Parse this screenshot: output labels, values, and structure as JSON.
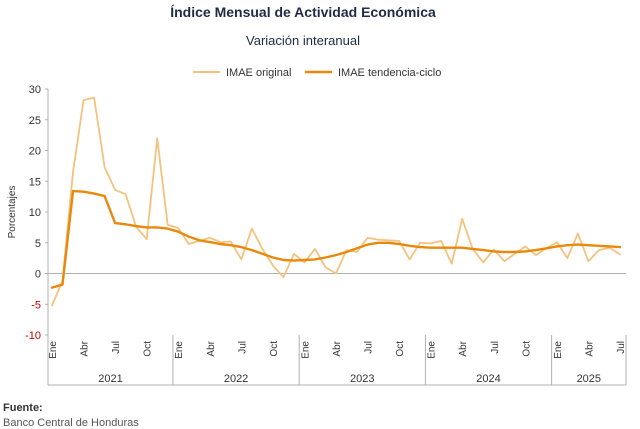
{
  "chart_data": {
    "type": "line",
    "title": "Índice Mensual de Actividad Económica",
    "subtitle": "Variación interanual",
    "ylabel": "Porcentajes",
    "xlabel": "",
    "ylim": [
      -10,
      30
    ],
    "yticks": [
      -10,
      -5,
      0,
      5,
      10,
      15,
      20,
      25,
      30
    ],
    "grid": false,
    "legend_position": "top",
    "month_tick_labels": [
      "Ene",
      "Abr",
      "Jul",
      "Oct"
    ],
    "years": [
      "2021",
      "2022",
      "2023",
      "2024",
      "2025"
    ],
    "series": [
      {
        "name": "IMAE original",
        "color": "#f5c27d",
        "values": [
          -5.2,
          -1.2,
          16.5,
          28.2,
          28.6,
          17.3,
          13.6,
          12.9,
          7.6,
          5.6,
          22.0,
          7.9,
          7.4,
          4.8,
          5.3,
          5.8,
          5.1,
          5.2,
          2.3,
          7.3,
          4.0,
          1.3,
          -0.6,
          3.2,
          1.8,
          4.0,
          1.0,
          0.0,
          3.8,
          3.5,
          5.8,
          5.5,
          5.4,
          5.3,
          2.3,
          5.0,
          4.9,
          5.3,
          1.6,
          8.9,
          4.0,
          1.8,
          3.9,
          2.0,
          3.2,
          4.4,
          3.0,
          4.1,
          5.1,
          2.5,
          6.5,
          2.0,
          3.8,
          4.2,
          3.1
        ]
      },
      {
        "name": "IMAE tendencia-ciclo",
        "color": "#e8890c",
        "values": [
          -2.3,
          -1.8,
          13.4,
          13.3,
          13.0,
          12.6,
          8.2,
          8.0,
          7.7,
          7.5,
          7.5,
          7.3,
          6.8,
          6.0,
          5.4,
          5.1,
          4.8,
          4.6,
          4.3,
          3.8,
          3.2,
          2.6,
          2.2,
          2.1,
          2.2,
          2.3,
          2.6,
          3.0,
          3.5,
          4.1,
          4.7,
          5.0,
          5.0,
          4.8,
          4.5,
          4.3,
          4.2,
          4.2,
          4.2,
          4.2,
          4.0,
          3.8,
          3.6,
          3.5,
          3.5,
          3.6,
          3.8,
          4.1,
          4.4,
          4.6,
          4.7,
          4.6,
          4.5,
          4.4,
          4.3
        ]
      }
    ]
  },
  "footer": {
    "source_label": "Fuente:",
    "source_text": "Banco Central de Honduras"
  }
}
